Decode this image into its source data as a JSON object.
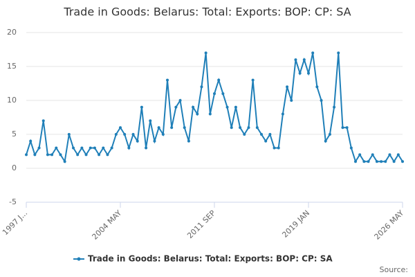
{
  "chart_data": {
    "type": "line",
    "title": "Trade in Goods: Belarus: Total: Exports: BOP: CP: SA",
    "source": "Source:",
    "categories": [
      "1997 J...",
      null,
      null,
      null,
      null,
      null,
      null,
      null,
      null,
      null,
      null,
      null,
      null,
      null,
      null,
      null,
      null,
      null,
      null,
      null,
      null,
      null,
      "2004 MAY",
      null,
      null,
      null,
      null,
      null,
      null,
      null,
      null,
      null,
      null,
      null,
      null,
      null,
      null,
      null,
      null,
      null,
      null,
      null,
      null,
      null,
      "2011 SEP",
      null,
      null,
      null,
      null,
      null,
      null,
      null,
      null,
      null,
      null,
      null,
      null,
      null,
      null,
      null,
      null,
      null,
      null,
      null,
      null,
      null,
      "2019 JAN",
      null,
      null,
      null,
      null,
      null,
      null,
      null,
      null,
      null,
      null,
      null,
      null,
      null,
      null,
      null,
      null,
      null,
      null,
      null,
      null,
      null,
      "2026 MAY"
    ],
    "series": [
      {
        "name": "Trade in Goods: Belarus: Total: Exports: BOP: CP: SA",
        "color": "#1f7fb8",
        "values": [
          2,
          4,
          2,
          3,
          7,
          2,
          2,
          3,
          2,
          1,
          5,
          3,
          2,
          3,
          2,
          3,
          3,
          2,
          3,
          2,
          3,
          5,
          6,
          5,
          3,
          5,
          4,
          9,
          3,
          7,
          4,
          6,
          5,
          13,
          6,
          9,
          10,
          6,
          4,
          9,
          8,
          12,
          17,
          8,
          11,
          13,
          11,
          9,
          6,
          9,
          6,
          5,
          6,
          13,
          6,
          5,
          4,
          5,
          3,
          3,
          8,
          12,
          10,
          16,
          14,
          16,
          14,
          17,
          12,
          10,
          4,
          5,
          9,
          17,
          6,
          6,
          3,
          1,
          2,
          1,
          1,
          2,
          1,
          1,
          1,
          2,
          1,
          2,
          1
        ]
      }
    ],
    "ylim": [
      -5,
      20
    ],
    "yticks": [
      -5,
      0,
      5,
      10,
      15,
      20
    ],
    "grid": true,
    "legend": "bottom"
  }
}
